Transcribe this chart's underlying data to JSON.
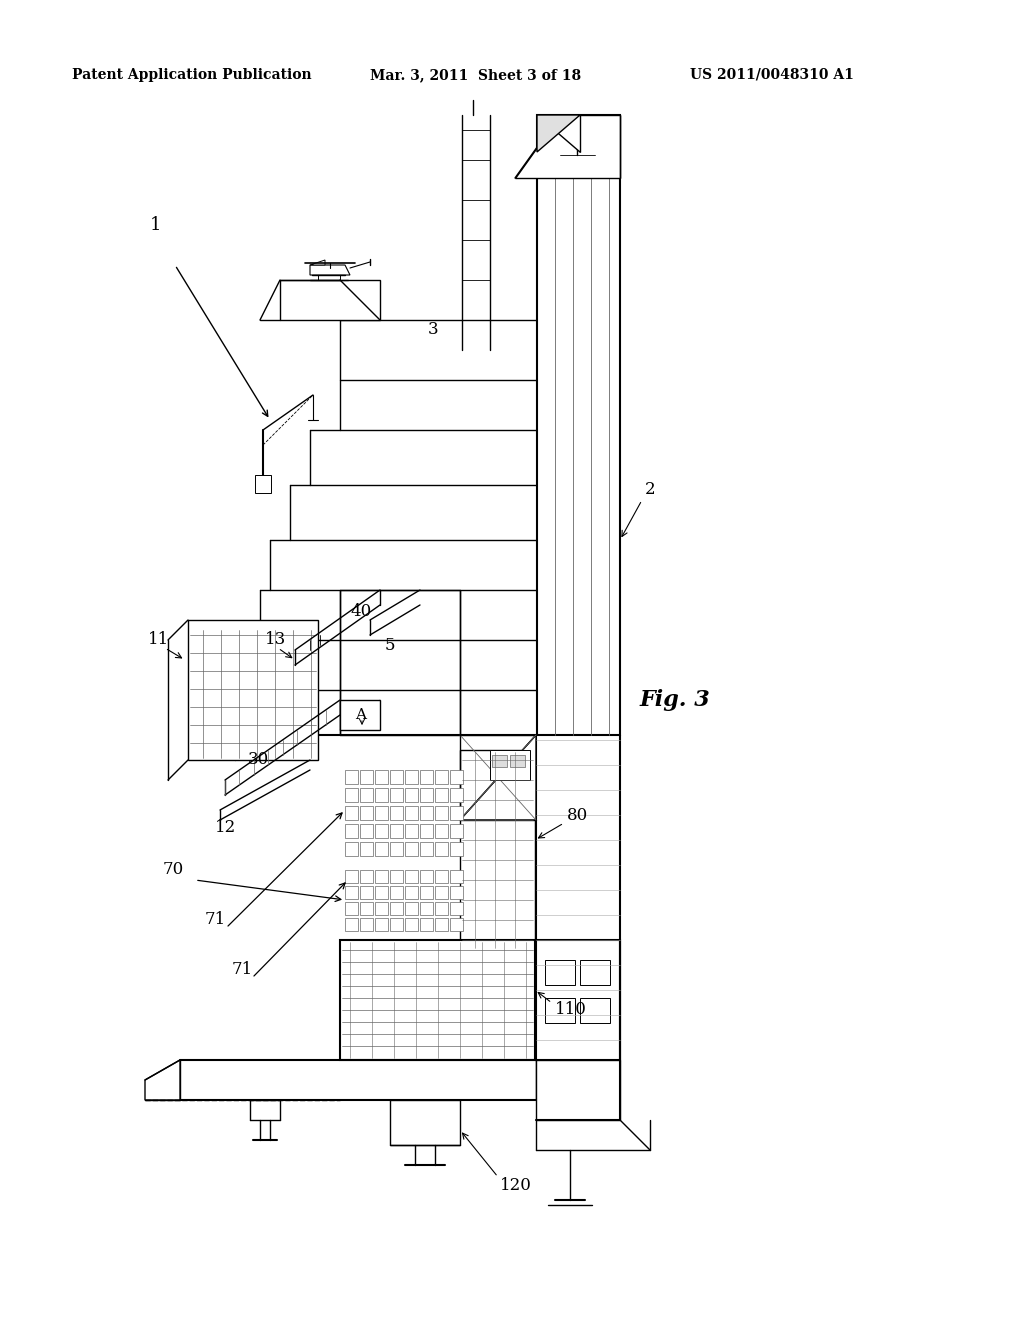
{
  "background_color": "#ffffff",
  "header_left": "Patent Application Publication",
  "header_mid": "Mar. 3, 2011  Sheet 3 of 18",
  "header_right": "US 2011/0048310 A1",
  "fig_label": "Fig. 3"
}
